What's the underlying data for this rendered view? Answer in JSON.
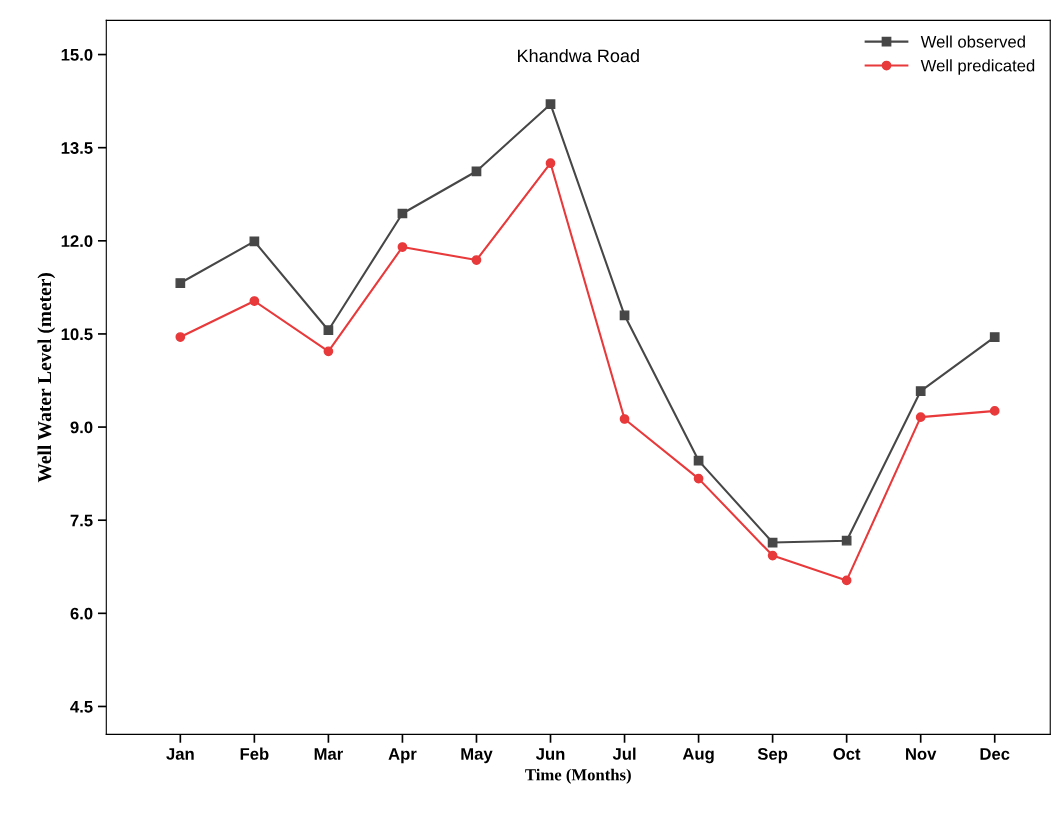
{
  "chart_data": {
    "type": "line",
    "title": "Khandwa Road",
    "xlabel": "Time (Months)",
    "ylabel": "Well Water Level (meter)",
    "categories": [
      "Jan",
      "Feb",
      "Mar",
      "Apr",
      "May",
      "Jun",
      "Jul",
      "Aug",
      "Sep",
      "Oct",
      "Nov",
      "Dec"
    ],
    "series": [
      {
        "name": "Well observed",
        "color": "#474747",
        "marker": "square",
        "values": [
          11.32,
          11.99,
          10.56,
          12.44,
          13.12,
          14.2,
          10.8,
          8.46,
          7.14,
          7.17,
          9.58,
          10.45
        ]
      },
      {
        "name": "Well predicated",
        "color": "#e8393b",
        "marker": "circle",
        "values": [
          10.45,
          11.03,
          10.22,
          11.9,
          11.69,
          13.25,
          9.13,
          8.17,
          6.93,
          6.53,
          9.16,
          9.26
        ]
      }
    ],
    "ylim": [
      4.05,
      15.55
    ],
    "yticks": [
      {
        "value": 4.5,
        "label": "4.5"
      },
      {
        "value": 6,
        "label": "6.0"
      },
      {
        "value": 7.5,
        "label": "7.5"
      },
      {
        "value": 9,
        "label": "9.0"
      },
      {
        "value": 10.5,
        "label": "10.5"
      },
      {
        "value": 12,
        "label": "12.0"
      },
      {
        "value": 13.5,
        "label": "13.5"
      },
      {
        "value": 15,
        "label": "15.0"
      }
    ],
    "grid": false,
    "legend": "top right",
    "line_style": "solid"
  }
}
